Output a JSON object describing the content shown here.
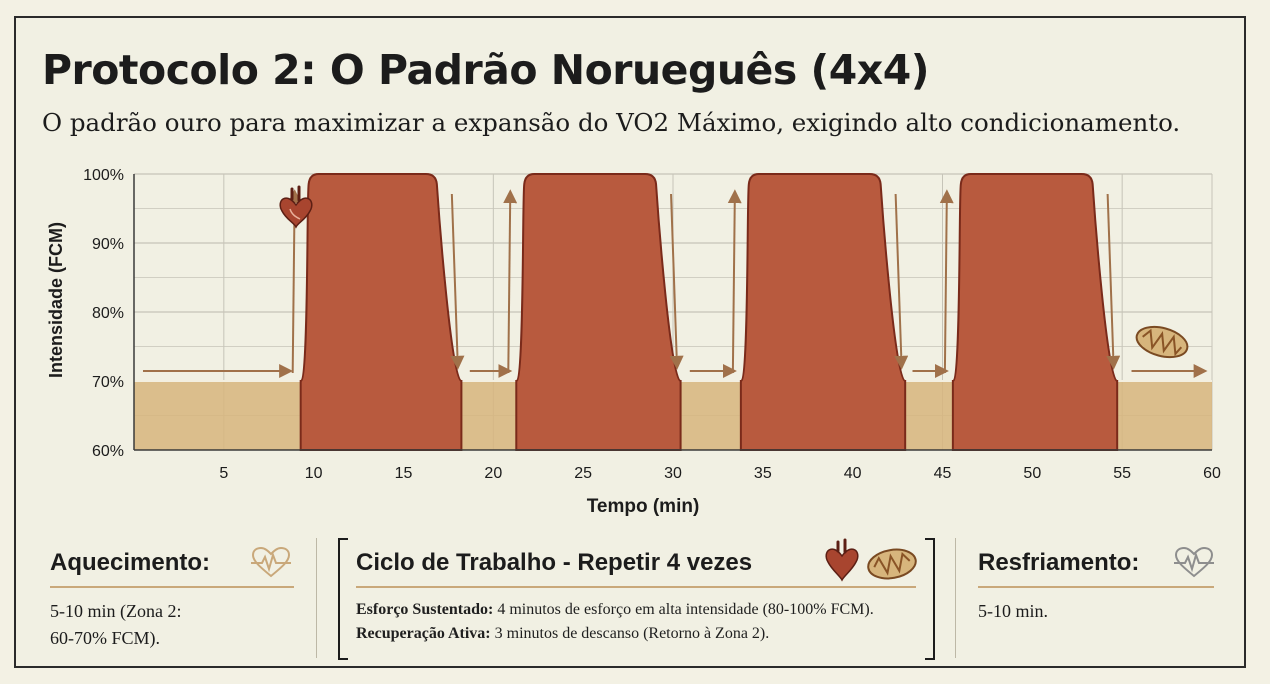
{
  "title": "Protocolo 2: O Padrão Norueguês (4x4)",
  "subtitle": "O padrão ouro para maximizar a expansão do VO2 Máximo, exigindo alto condicionamento.",
  "colors": {
    "effort": "#b85a3e",
    "effort_outline": "#7a2a1a",
    "recovery": "#d7b57c",
    "arrow": "#a0714a",
    "grid": "#c6c4b8"
  },
  "chart_data": {
    "type": "area",
    "xlabel": "Tempo (min)",
    "ylabel": "Intensidade (FCM)",
    "xlim": [
      0,
      60
    ],
    "ylim": [
      60,
      100
    ],
    "x_ticks": [
      "5",
      "10",
      "15",
      "20",
      "25",
      "30",
      "35",
      "40",
      "45",
      "50",
      "55",
      "60"
    ],
    "y_ticks": [
      "60%",
      "70%",
      "80%",
      "90%",
      "100%"
    ],
    "grid": true,
    "series": [
      {
        "x": [
          0,
          9.5,
          10.5,
          16.8,
          18,
          21.5,
          22.7,
          29,
          30.2,
          34,
          35.2,
          41.5,
          42.7,
          45.8,
          47,
          53.3,
          54.5,
          60
        ],
        "y": [
          70,
          70,
          100,
          100,
          70,
          70,
          100,
          100,
          70,
          70,
          100,
          100,
          70,
          70,
          100,
          100,
          70,
          70
        ]
      }
    ],
    "icons": [
      "heart-icon",
      "mitochondria-icon"
    ]
  },
  "cards": {
    "warmup": {
      "title": "Aquecimento:",
      "icon": "heartbeat-icon",
      "text_line1": "5-10 min (Zona 2:",
      "text_line2": "60-70% FCM)."
    },
    "cycle": {
      "title": "Ciclo de Trabalho - Repetir 4 vezes",
      "icons": [
        "heart-icon",
        "mitochondria-icon"
      ],
      "effort_label": "Esforço Sustentado:",
      "effort_text": " 4 minutos de esforço em alta intensidade (80-100% FCM).",
      "recovery_label": "Recuperação Ativa:",
      "recovery_text": " 3 minutos de descanso (Retorno à Zona 2)."
    },
    "cooldown": {
      "title": "Resfriamento:",
      "icon": "heartbeat-icon",
      "text": "5-10 min."
    }
  }
}
